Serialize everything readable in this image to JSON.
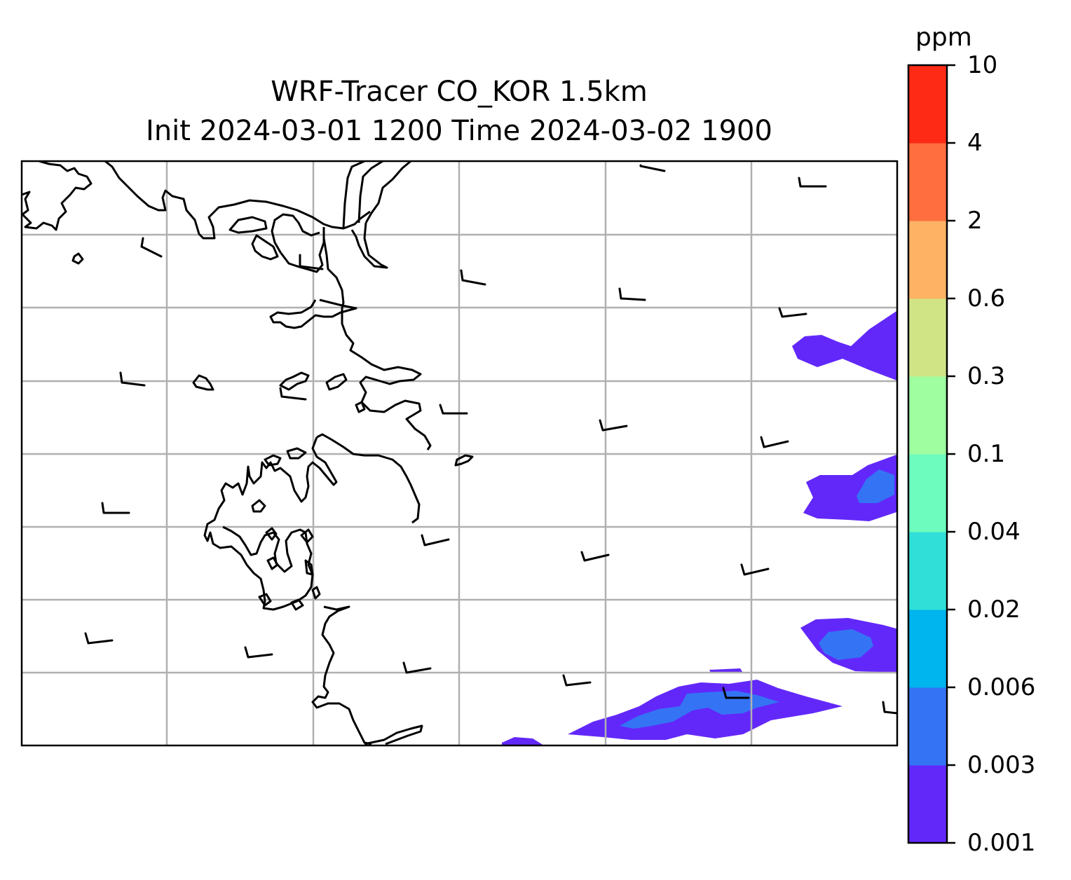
{
  "title": {
    "line1": "WRF-Tracer CO_KOR 1.5km",
    "line2": "Init 2024-03-01 1200 Time 2024-03-02 1900"
  },
  "colorbar": {
    "unit": "ppm",
    "levels": [
      "0.001",
      "0.003",
      "0.006",
      "0.02",
      "0.04",
      "0.1",
      "0.3",
      "0.6",
      "2",
      "4",
      "10"
    ],
    "colors": [
      "#6228fa",
      "#3474f4",
      "#00b4ee",
      "#30e0d8",
      "#6efcbe",
      "#9efea0",
      "#d0e486",
      "#feb264",
      "#fe6e3e",
      "#fe2a16"
    ]
  },
  "map": {
    "gridline_color": "#b0b0b0",
    "coastline_color": "#000000",
    "wind_barb_color": "#000000",
    "field": "CO tracer concentration"
  }
}
